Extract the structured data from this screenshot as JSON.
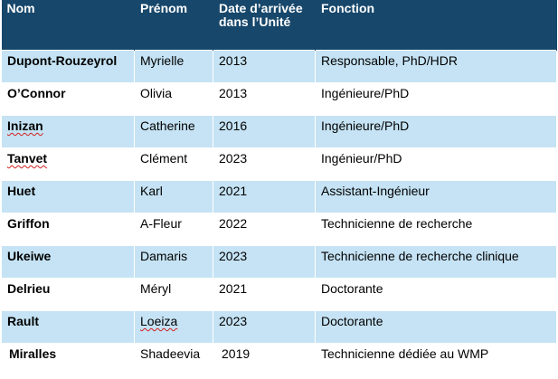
{
  "table": {
    "headers": {
      "nom": "Nom",
      "prenom": "Prénom",
      "date": "Date d’arrivée dans l’Unité",
      "fonction": "Fonction"
    },
    "rows": [
      {
        "nom": "Dupont-Rouzeyrol",
        "prenom": "Myrielle",
        "date": "2013",
        "fonction": "Responsable, PhD/HDR"
      },
      {
        "nom": "O’Connor",
        "prenom": "Olivia",
        "date": "2013",
        "fonction": "Ingénieure/PhD"
      },
      {
        "nom": "Inizan",
        "prenom": "Catherine",
        "date": "2016",
        "fonction": "Ingénieure/PhD"
      },
      {
        "nom": "Tanvet",
        "prenom": "Clément",
        "date": "2023",
        "fonction": "Ingénieur/PhD"
      },
      {
        "nom": "Huet",
        "prenom": "Karl",
        "date": "2021",
        "fonction": "Assistant-Ingénieur"
      },
      {
        "nom": "Griffon",
        "prenom": "A-Fleur",
        "date": "2022",
        "fonction": "Technicienne de recherche"
      },
      {
        "nom": "Ukeiwe",
        "prenom": "Damaris",
        "date": "2023",
        "fonction": "Technicienne de recherche clinique"
      },
      {
        "nom": "Delrieu",
        "prenom": "Méryl",
        "date": "2021",
        "fonction": "Doctorante"
      },
      {
        "nom": "Rault",
        "prenom": "Loeiza",
        "date": "2023",
        "fonction": "Doctorante"
      },
      {
        "nom": "Miralles",
        "prenom": "Shadeevia",
        "date": "2019",
        "fonction": "Technicienne dédiée au WMP"
      }
    ]
  },
  "colors": {
    "header_bg": "#17476b",
    "band_bg": "#c5e3f4",
    "spellcheck": "#d11f1f"
  }
}
